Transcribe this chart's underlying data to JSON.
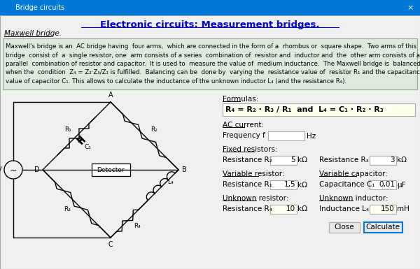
{
  "title_bar_color": "#0078d7",
  "title_bar_text": "Bridge circuits",
  "title_bar_x_text": "×",
  "main_title": "Electronic circuits: Measurement bridges.",
  "main_title_color": "#0000cc",
  "subtitle": "Maxwell bridge.",
  "bg_color": "#f0f0f0",
  "description_bg": "#deeade",
  "description_border": "#8aaa8a",
  "description_lines": [
    "Maxwell's bridge is an  AC bridge having  four arms,  which are connected in the form of a  rhombus or  square shape.  Two arms of this",
    "bridge  consist of  a  single resistor, one  arm consists of a series  combination of  resistor and  inductor and  the  other arm consists of a",
    "parallel  combination of resistor and capacitor.  It is used to  measure the value of  medium inductance.  The Maxwell bridge is  balanced",
    "when the  condition  Z₄ = Z₂·Z₃/Z₁ is fulfilled.  Balancing can be  done by  varying the  resistance value of  resistor R₁ and the capacitance",
    "value of capacitor C₁. This allows to calculate the inductance of the unknown inductor L₄ (and the resistance R₄)."
  ],
  "formula_label": "Formulas:",
  "formula_text": "R₄ = R₂ · R₃ / R₁  and  L₄ = C₁ · R₂ · R₃",
  "ac_current_label": "AC current:",
  "freq_label": "Frequency f",
  "freq_unit": "Hz",
  "fixed_res_label": "Fixed resistors:",
  "res2_label": "Resistance R₂",
  "res2_value": "5",
  "res2_unit": "kΩ",
  "res3_label": "Resistance R₃",
  "res3_value": "3",
  "res3_unit": "kΩ",
  "var_res_label": "Variable resistor:",
  "var_cap_label": "Variable capacitor:",
  "res1_label": "Resistance R₁",
  "res1_value": "1,5",
  "res1_unit": "kΩ",
  "cap1_label": "Capacitance C₁",
  "cap1_value": "0,01",
  "cap1_unit": "μF",
  "unk_res_label": "Unknown resistor:",
  "unk_ind_label": "Unknown inductor:",
  "res4_label": "Resistance R₄",
  "res4_value": "10",
  "res4_unit": "kΩ",
  "ind4_label": "Inductance L₄",
  "ind4_value": "150",
  "ind4_unit": "mH",
  "close_btn": "Close",
  "calc_btn": "Calculate"
}
